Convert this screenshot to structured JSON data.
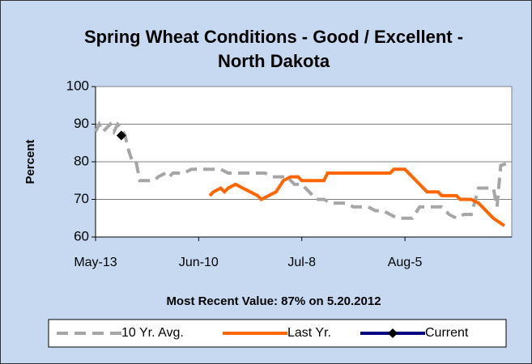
{
  "chart_data": {
    "type": "line",
    "title": [
      "Spring Wheat Conditions - Good / Excellent -",
      "North Dakota"
    ],
    "y_label": "Percent",
    "annotation": "Most Recent Value: 87% on 5.20.2012",
    "xlim": [
      0,
      113
    ],
    "xticks": [
      {
        "value": 0,
        "label": "May-13"
      },
      {
        "value": 28,
        "label": "Jun-10"
      },
      {
        "value": 56,
        "label": "Jul-8"
      },
      {
        "value": 84,
        "label": "Aug-5"
      }
    ],
    "ylim": [
      60,
      100
    ],
    "yticks": [
      60,
      70,
      80,
      90,
      100
    ],
    "grid": true,
    "legend": "bottom",
    "series": [
      {
        "name": "10 Yr. Avg.",
        "color": "#a6a6a6",
        "style": "dashed",
        "x": [
          0,
          1,
          2,
          3,
          4,
          5,
          6,
          7,
          8,
          9,
          10,
          11,
          12,
          14,
          16,
          17,
          19,
          20,
          21,
          24,
          26,
          30,
          34,
          36,
          42,
          46,
          48,
          52,
          54,
          56,
          58,
          60,
          62,
          64,
          68,
          70,
          74,
          76,
          78,
          80,
          82,
          86,
          88,
          94,
          96,
          98,
          100,
          102,
          104,
          108,
          109,
          110,
          113
        ],
        "values": [
          88,
          90,
          88,
          89,
          90,
          88,
          90,
          89,
          87,
          83,
          80,
          80,
          75,
          75,
          75,
          76,
          77,
          76,
          77,
          77,
          78,
          78,
          78,
          77,
          77,
          77,
          76,
          76,
          74,
          74,
          72,
          70,
          70,
          69,
          69,
          68,
          68,
          67,
          67,
          66,
          65,
          65,
          68,
          68,
          66,
          65,
          66,
          66,
          73,
          73,
          68,
          79,
          80
        ]
      },
      {
        "name": "Last Yr.",
        "color": "#ff6600",
        "style": "solid",
        "x": [
          31,
          32,
          34,
          35,
          36,
          38,
          40,
          42,
          44,
          45,
          47,
          49,
          51,
          53,
          55,
          56,
          62,
          63,
          80,
          81,
          84,
          86,
          88,
          90,
          93,
          94,
          98,
          99,
          102,
          104,
          106,
          108,
          111
        ],
        "values": [
          71,
          72,
          73,
          72,
          73,
          74,
          73,
          72,
          71,
          70,
          71,
          72,
          75,
          76,
          76,
          75,
          75,
          77,
          77,
          78,
          78,
          76,
          74,
          72,
          72,
          71,
          71,
          70,
          70,
          69,
          67,
          65,
          63
        ]
      },
      {
        "name": "Current",
        "color": "#000080",
        "style": "marker",
        "x": [
          7
        ],
        "values": [
          87
        ]
      }
    ]
  }
}
